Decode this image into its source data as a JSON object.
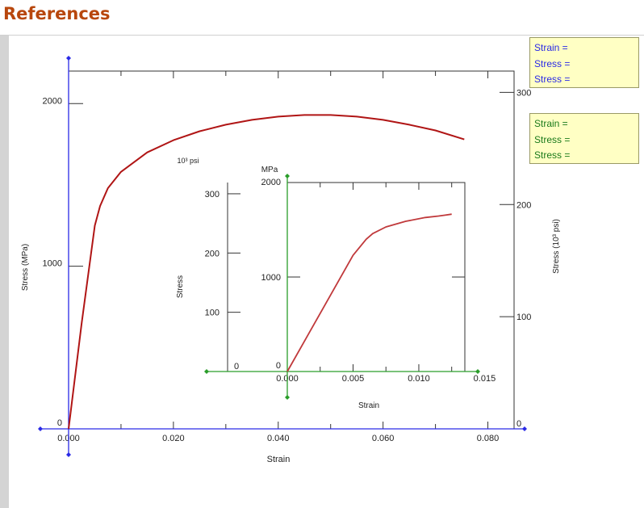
{
  "header": {
    "title": "References"
  },
  "readouts": {
    "main": {
      "line1": "Strain =",
      "line2": "Stress =",
      "line3": "Stress ="
    },
    "inset": {
      "line1": "Strain =",
      "line2": "Stress =",
      "line3": "Stress ="
    }
  },
  "colors": {
    "curve": "#b01515",
    "main_axis": "#2a2ae6",
    "inset_axis": "#2a9d2a",
    "header": "#b8470d",
    "readout_bg": "#ffffc4"
  },
  "chart_data": [
    {
      "type": "line",
      "xlabel": "Strain",
      "ylabel": "Stress (MPa)",
      "y2label": "Stress (10³ psi)",
      "xlim": [
        0,
        0.085
      ],
      "ylim": [
        0,
        2200
      ],
      "y2lim": [
        0,
        319
      ],
      "xticks": [
        "0.000",
        "0.020",
        "0.040",
        "0.060",
        "0.080"
      ],
      "yticks": [
        "0",
        "1000",
        "2000"
      ],
      "y2ticks": [
        "0",
        "100",
        "200",
        "300"
      ],
      "series": [
        {
          "x": [
            0,
            0.0025,
            0.005,
            0.006,
            0.0075,
            0.01,
            0.015,
            0.02,
            0.025,
            0.03,
            0.035,
            0.04,
            0.045,
            0.05,
            0.055,
            0.06,
            0.065,
            0.07,
            0.0755
          ],
          "y": [
            0,
            650,
            1250,
            1370,
            1480,
            1580,
            1700,
            1775,
            1830,
            1870,
            1900,
            1920,
            1930,
            1930,
            1920,
            1900,
            1870,
            1835,
            1780
          ]
        }
      ]
    },
    {
      "type": "line",
      "inset": true,
      "xlabel": "Strain",
      "ylabel": "Stress",
      "y_unit_left": "10³ psi",
      "y_unit_right": "MPa",
      "xlim": [
        0,
        0.0135
      ],
      "ylim": [
        0,
        2000
      ],
      "xticks": [
        "0.000",
        "0.005",
        "0.010",
        "0.015"
      ],
      "yticks_mpa": [
        "0",
        "1000",
        "2000"
      ],
      "yticks_psi": [
        "0",
        "100",
        "200",
        "300"
      ],
      "series": [
        {
          "x": [
            0,
            0.005,
            0.006,
            0.0065,
            0.0075,
            0.009,
            0.0105,
            0.0115,
            0.012,
            0.0125
          ],
          "y": [
            0,
            1230,
            1400,
            1460,
            1530,
            1590,
            1630,
            1645,
            1655,
            1665
          ]
        }
      ]
    }
  ]
}
